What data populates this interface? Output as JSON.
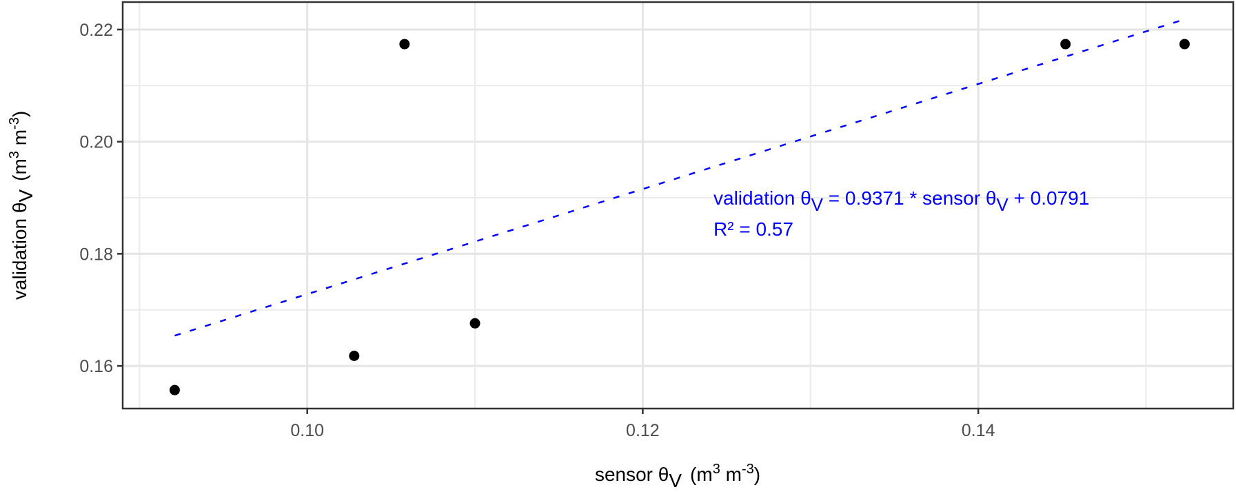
{
  "chart_data": {
    "type": "scatter",
    "title": "",
    "xlabel": {
      "main": "sensor θ",
      "sub": "V",
      "units_open": "(m",
      "units_exp1": "3",
      "units_mid": " m",
      "units_exp2": "-3",
      "units_close": ")"
    },
    "ylabel": {
      "main": "validation θ",
      "sub": "V",
      "units_open": "(m",
      "units_exp1": "3",
      "units_mid": " m",
      "units_exp2": "-3",
      "units_close": ")"
    },
    "xlim": [
      0.089,
      0.1552
    ],
    "ylim": [
      0.1524,
      0.2249
    ],
    "x_major_ticks": [
      0.1,
      0.12,
      0.14
    ],
    "x_tick_labels": [
      "0.10",
      "0.12",
      "0.14"
    ],
    "x_minor_ticks": [
      0.09,
      0.11,
      0.13,
      0.15
    ],
    "y_major_ticks": [
      0.16,
      0.18,
      0.2,
      0.22
    ],
    "y_tick_labels": [
      "0.16",
      "0.18",
      "0.20",
      "0.22"
    ],
    "y_minor_ticks": [
      0.17,
      0.19,
      0.21
    ],
    "grid": true,
    "points": [
      {
        "x": 0.0921,
        "y": 0.1557
      },
      {
        "x": 0.1028,
        "y": 0.1618
      },
      {
        "x": 0.1058,
        "y": 0.2174
      },
      {
        "x": 0.11,
        "y": 0.1676
      },
      {
        "x": 0.1452,
        "y": 0.2174
      },
      {
        "x": 0.1523,
        "y": 0.2174
      }
    ],
    "fit": {
      "slope": 0.9371,
      "intercept": 0.0791,
      "x_range": [
        0.0921,
        0.1523
      ],
      "r2": 0.57,
      "color": "#0000ff",
      "style": "dashed"
    },
    "annotation": {
      "line1_a": "validation θ",
      "line1_sub1": "V",
      "line1_b": " = 0.9371 * sensor θ",
      "line1_sub2": "V",
      "line1_c": " + 0.0791",
      "line2": "R² = 0.57"
    },
    "point_color": "#000000"
  }
}
